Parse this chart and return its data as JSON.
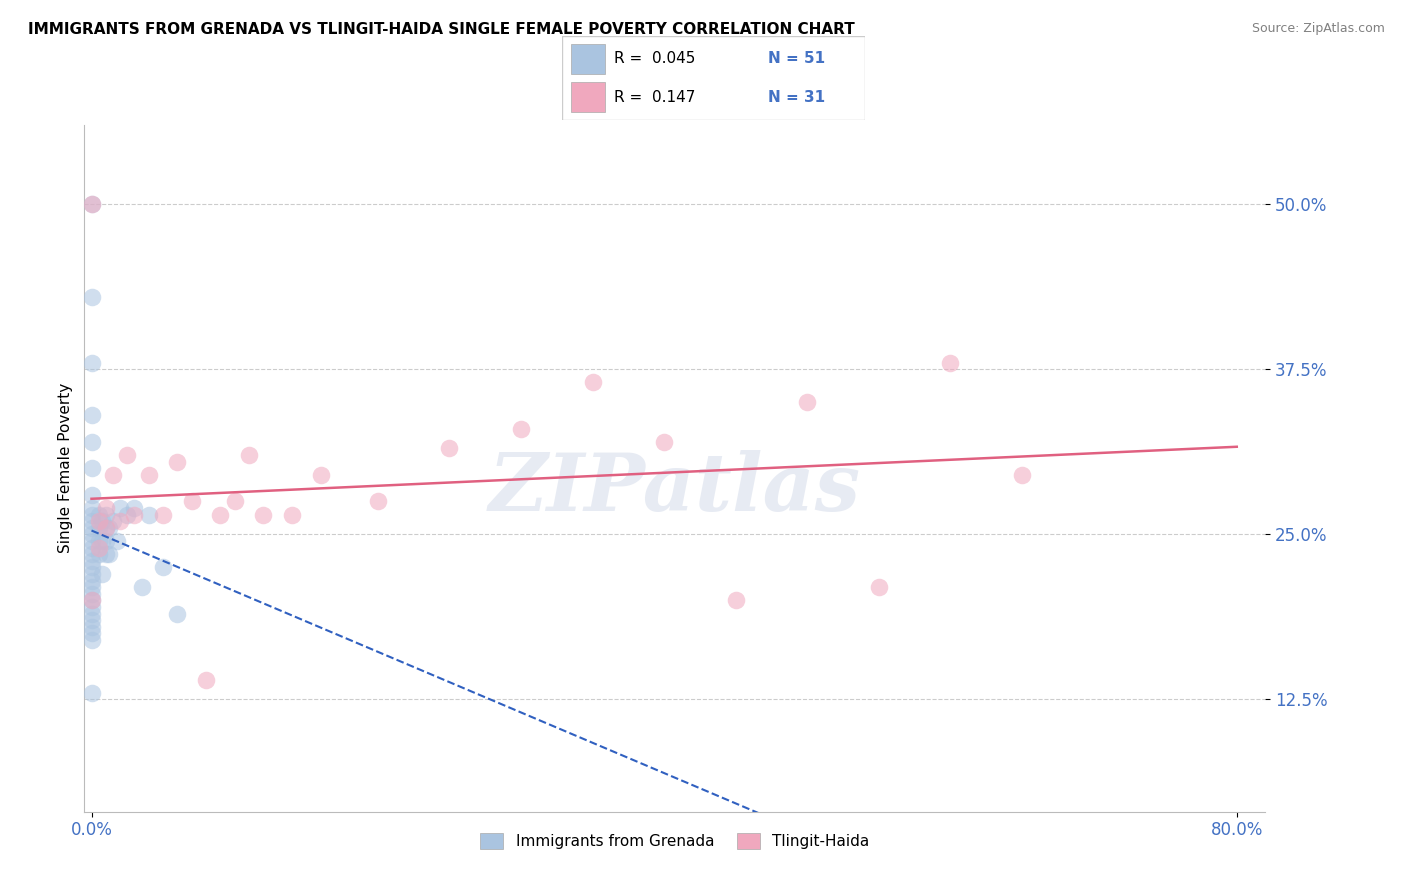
{
  "title": "IMMIGRANTS FROM GRENADA VS TLINGIT-HAIDA SINGLE FEMALE POVERTY CORRELATION CHART",
  "source": "Source: ZipAtlas.com",
  "ylabel": "Single Female Poverty",
  "blue_color": "#aac4e0",
  "pink_color": "#f0a8be",
  "trend_blue_color": "#3060c0",
  "trend_pink_color": "#e06080",
  "watermark": "ZIPatlas",
  "blue_scatter_x": [
    0.0,
    0.0,
    0.0,
    0.0,
    0.0,
    0.0,
    0.0,
    0.0,
    0.0,
    0.0,
    0.0,
    0.0,
    0.0,
    0.0,
    0.0,
    0.0,
    0.0,
    0.0,
    0.0,
    0.0,
    0.0,
    0.0,
    0.0,
    0.0,
    0.0,
    0.0,
    0.0,
    0.0,
    0.0,
    0.005,
    0.005,
    0.005,
    0.005,
    0.007,
    0.007,
    0.007,
    0.01,
    0.01,
    0.01,
    0.01,
    0.012,
    0.012,
    0.015,
    0.018,
    0.02,
    0.025,
    0.03,
    0.035,
    0.04,
    0.05,
    0.06
  ],
  "blue_scatter_y": [
    0.5,
    0.43,
    0.38,
    0.34,
    0.32,
    0.3,
    0.28,
    0.27,
    0.265,
    0.26,
    0.255,
    0.25,
    0.245,
    0.24,
    0.235,
    0.23,
    0.225,
    0.22,
    0.215,
    0.21,
    0.205,
    0.2,
    0.195,
    0.19,
    0.185,
    0.18,
    0.175,
    0.17,
    0.13,
    0.265,
    0.255,
    0.245,
    0.235,
    0.26,
    0.245,
    0.22,
    0.265,
    0.255,
    0.245,
    0.235,
    0.255,
    0.235,
    0.26,
    0.245,
    0.27,
    0.265,
    0.27,
    0.21,
    0.265,
    0.225,
    0.19
  ],
  "pink_scatter_x": [
    0.0,
    0.0,
    0.005,
    0.005,
    0.01,
    0.01,
    0.015,
    0.02,
    0.025,
    0.03,
    0.04,
    0.05,
    0.06,
    0.07,
    0.08,
    0.09,
    0.1,
    0.11,
    0.12,
    0.14,
    0.16,
    0.2,
    0.25,
    0.3,
    0.35,
    0.4,
    0.45,
    0.5,
    0.55,
    0.6,
    0.65
  ],
  "pink_scatter_y": [
    0.5,
    0.2,
    0.26,
    0.24,
    0.27,
    0.255,
    0.295,
    0.26,
    0.31,
    0.265,
    0.295,
    0.265,
    0.305,
    0.275,
    0.14,
    0.265,
    0.275,
    0.31,
    0.265,
    0.265,
    0.295,
    0.275,
    0.315,
    0.33,
    0.365,
    0.32,
    0.2,
    0.35,
    0.21,
    0.38,
    0.295
  ],
  "xlim": [
    -0.005,
    0.82
  ],
  "ylim": [
    0.04,
    0.56
  ],
  "yticks": [
    0.125,
    0.25,
    0.375,
    0.5
  ],
  "yticklabels": [
    "12.5%",
    "25.0%",
    "37.5%",
    "50.0%"
  ],
  "xticks": [
    0.0,
    0.8
  ],
  "xticklabels": [
    "0.0%",
    "80.0%"
  ]
}
